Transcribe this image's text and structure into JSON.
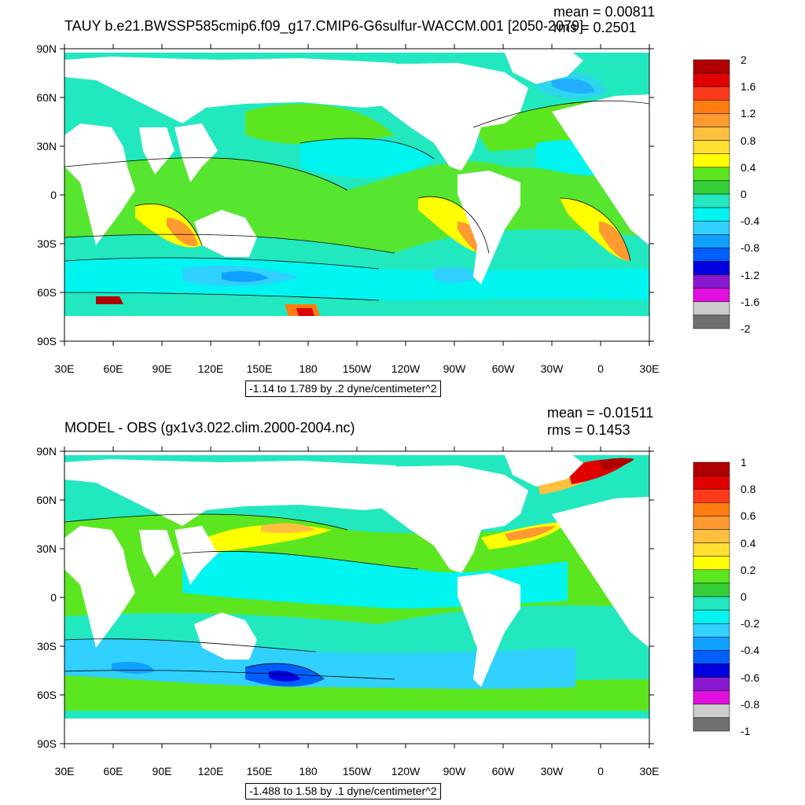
{
  "panels": [
    {
      "title": "TAUY b.e21.BWSSP585cmip6.f09_g17.CMIP6-G6sulfur-WACCM.001 [2050-2079]",
      "mean_label": "mean = 0.00811",
      "rms_label": "rms = 0.2501",
      "caption": "-1.14 to 1.789 by .2 dyne/centimeter^2",
      "colorbar_labels": [
        "2",
        "1.6",
        "1.2",
        "0.8",
        "0.4",
        "0",
        "-0.4",
        "-0.8",
        "-1.2",
        "-1.6",
        "-2"
      ],
      "colorbar_colors": [
        "#b00000",
        "#e00000",
        "#ff3a1a",
        "#ff7a10",
        "#ff9a30",
        "#ffc040",
        "#ffe030",
        "#ffff00",
        "#5ce620",
        "#35cf3a",
        "#22e8c0",
        "#00f5f0",
        "#30d0ff",
        "#10a0ff",
        "#0060ff",
        "#0000e0",
        "#8a18d0",
        "#e010e0",
        "#cccccc",
        "#707070"
      ]
    },
    {
      "title": "MODEL - OBS (gx1v3.022.clim.2000-2004.nc)",
      "mean_label": "mean = -0.01511",
      "rms_label": "rms = 0.1453",
      "caption": "-1.488 to 1.58 by .1 dyne/centimeter^2",
      "colorbar_labels": [
        "1",
        "0.8",
        "0.6",
        "0.4",
        "0.2",
        "0",
        "-0.2",
        "-0.4",
        "-0.6",
        "-0.8",
        "-1"
      ],
      "colorbar_colors": [
        "#b00000",
        "#e00000",
        "#ff3a1a",
        "#ff7a10",
        "#ff9a30",
        "#ffc040",
        "#ffe030",
        "#ffff00",
        "#5ce620",
        "#35cf3a",
        "#22e8c0",
        "#00f5f0",
        "#30d0ff",
        "#10a0ff",
        "#0060ff",
        "#0000e0",
        "#8a18d0",
        "#e010e0",
        "#cccccc",
        "#707070"
      ]
    }
  ],
  "lat_labels": [
    "90N",
    "60N",
    "30N",
    "0",
    "30S",
    "60S",
    "90S"
  ],
  "lon_labels": [
    "30E",
    "60E",
    "90E",
    "120E",
    "150E",
    "180",
    "150W",
    "120W",
    "90W",
    "60W",
    "30W",
    "0",
    "30E"
  ],
  "colors": {
    "ocean_base": "#22e8c0",
    "green": "#5ce620",
    "cyan": "#00f5f0",
    "blue": "#30d0ff",
    "yellow": "#ffff00",
    "orange": "#ff9a30",
    "red": "#e00000",
    "land": "#ffffff"
  }
}
